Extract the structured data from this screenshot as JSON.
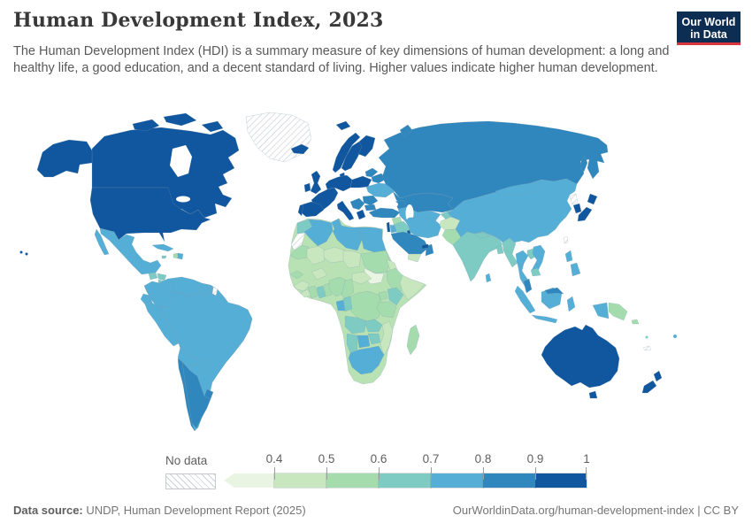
{
  "header": {
    "title": "Human Development Index, 2023",
    "subtitle": "The Human Development Index (HDI) is a summary measure of key dimensions of human development: a long and healthy life, a good education, and a decent standard of living. Higher values indicate higher human development.",
    "logo": {
      "line1": "Our World",
      "line2": "in Data",
      "bg_color": "#0d2e52",
      "accent_color": "#d8353f"
    }
  },
  "legend": {
    "no_data_label": "No data",
    "ticks": [
      "0.4",
      "0.5",
      "0.6",
      "0.7",
      "0.8",
      "0.9",
      "1"
    ],
    "bins": [
      {
        "label": "<0.4",
        "color": "#e9f4e2"
      },
      {
        "label": "0.4-0.5",
        "color": "#c8e7bf"
      },
      {
        "label": "0.5-0.6",
        "color": "#a5dcae"
      },
      {
        "label": "0.6-0.7",
        "color": "#7ecbc3"
      },
      {
        "label": "0.7-0.8",
        "color": "#55aed6"
      },
      {
        "label": "0.8-0.9",
        "color": "#2f87bd"
      },
      {
        "label": "0.9-1",
        "color": "#11579f"
      }
    ],
    "no_data_pattern": "diagonal-hatch"
  },
  "footer": {
    "source_label": "Data source:",
    "source_text": "UNDP, Human Development Report (2025)",
    "credit": "OurWorldinData.org/human-development-index | CC BY"
  },
  "chart_data": {
    "type": "choropleth",
    "title": "Human Development Index, 2023",
    "year": "2023",
    "unit_range": [
      0,
      1
    ],
    "legend_position": "bottom",
    "bins": [
      "<0.4",
      "0.4-0.5",
      "0.5-0.6",
      "0.6-0.7",
      "0.7-0.8",
      "0.8-0.9",
      "0.9-1",
      "No data"
    ],
    "regions": [
      {
        "name": "Canada",
        "bin": "0.9-1"
      },
      {
        "name": "United States",
        "bin": "0.9-1"
      },
      {
        "name": "Greenland",
        "bin": "No data"
      },
      {
        "name": "Mexico",
        "bin": "0.7-0.8"
      },
      {
        "name": "Guatemala",
        "bin": "0.6-0.7"
      },
      {
        "name": "Honduras",
        "bin": "0.6-0.7"
      },
      {
        "name": "Nicaragua",
        "bin": "0.6-0.7"
      },
      {
        "name": "Costa Rica",
        "bin": "0.8-0.9"
      },
      {
        "name": "Panama",
        "bin": "0.8-0.9"
      },
      {
        "name": "Cuba",
        "bin": "0.7-0.8"
      },
      {
        "name": "Jamaica",
        "bin": "0.6-0.7"
      },
      {
        "name": "Haiti",
        "bin": "0.5-0.6"
      },
      {
        "name": "Dominican Republic",
        "bin": "0.7-0.8"
      },
      {
        "name": "Colombia",
        "bin": "0.7-0.8"
      },
      {
        "name": "Venezuela",
        "bin": "0.7-0.8"
      },
      {
        "name": "Guyana",
        "bin": "0.7-0.8"
      },
      {
        "name": "Suriname",
        "bin": "0.7-0.8"
      },
      {
        "name": "French Guiana",
        "bin": "No data"
      },
      {
        "name": "Ecuador",
        "bin": "0.7-0.8"
      },
      {
        "name": "Peru",
        "bin": "0.7-0.8"
      },
      {
        "name": "Brazil",
        "bin": "0.7-0.8"
      },
      {
        "name": "Bolivia",
        "bin": "0.7-0.8"
      },
      {
        "name": "Paraguay",
        "bin": "0.7-0.8"
      },
      {
        "name": "Chile",
        "bin": "0.8-0.9"
      },
      {
        "name": "Argentina",
        "bin": "0.8-0.9"
      },
      {
        "name": "Uruguay",
        "bin": "0.8-0.9"
      },
      {
        "name": "Iceland",
        "bin": "0.9-1"
      },
      {
        "name": "Ireland",
        "bin": "0.9-1"
      },
      {
        "name": "United Kingdom",
        "bin": "0.9-1"
      },
      {
        "name": "Norway",
        "bin": "0.9-1"
      },
      {
        "name": "Sweden",
        "bin": "0.9-1"
      },
      {
        "name": "Finland",
        "bin": "0.9-1"
      },
      {
        "name": "Denmark",
        "bin": "0.9-1"
      },
      {
        "name": "France",
        "bin": "0.9-1"
      },
      {
        "name": "Germany",
        "bin": "0.9-1"
      },
      {
        "name": "Poland",
        "bin": "0.9-1"
      },
      {
        "name": "Spain",
        "bin": "0.9-1"
      },
      {
        "name": "Portugal",
        "bin": "0.9-1"
      },
      {
        "name": "Italy",
        "bin": "0.9-1"
      },
      {
        "name": "Greece",
        "bin": "0.9-1"
      },
      {
        "name": "Serbia",
        "bin": "0.8-0.9"
      },
      {
        "name": "Romania",
        "bin": "0.8-0.9"
      },
      {
        "name": "Bulgaria",
        "bin": "0.8-0.9"
      },
      {
        "name": "Baltic states",
        "bin": "0.8-0.9"
      },
      {
        "name": "Belarus",
        "bin": "0.8-0.9"
      },
      {
        "name": "Ukraine",
        "bin": "0.7-0.8"
      },
      {
        "name": "Russia",
        "bin": "0.8-0.9"
      },
      {
        "name": "Kazakhstan",
        "bin": "0.8-0.9"
      },
      {
        "name": "Uzbekistan",
        "bin": "0.7-0.8"
      },
      {
        "name": "Turkmenistan",
        "bin": "0.7-0.8"
      },
      {
        "name": "Tajikistan",
        "bin": "0.6-0.7"
      },
      {
        "name": "Azerbaijan",
        "bin": "0.8-0.9"
      },
      {
        "name": "Turkey",
        "bin": "0.8-0.9"
      },
      {
        "name": "Syria",
        "bin": "0.5-0.6"
      },
      {
        "name": "Iraq",
        "bin": "0.6-0.7"
      },
      {
        "name": "Israel",
        "bin": "0.9-1"
      },
      {
        "name": "Jordan",
        "bin": "0.7-0.8"
      },
      {
        "name": "Kuwait",
        "bin": "0.9-1"
      },
      {
        "name": "Saudi Arabia",
        "bin": "0.8-0.9"
      },
      {
        "name": "Yemen",
        "bin": "0.4-0.5"
      },
      {
        "name": "Oman",
        "bin": "0.8-0.9"
      },
      {
        "name": "United Arab Emirates",
        "bin": "0.9-1"
      },
      {
        "name": "Iran",
        "bin": "0.7-0.8"
      },
      {
        "name": "Afghanistan",
        "bin": "0.4-0.5"
      },
      {
        "name": "Pakistan",
        "bin": "0.5-0.6"
      },
      {
        "name": "India",
        "bin": "0.6-0.7"
      },
      {
        "name": "Nepal",
        "bin": "0.6-0.7"
      },
      {
        "name": "Bangladesh",
        "bin": "0.6-0.7"
      },
      {
        "name": "Sri Lanka",
        "bin": "0.7-0.8"
      },
      {
        "name": "Myanmar",
        "bin": "0.6-0.7"
      },
      {
        "name": "Thailand",
        "bin": "0.7-0.8"
      },
      {
        "name": "Laos",
        "bin": "0.6-0.7"
      },
      {
        "name": "Vietnam",
        "bin": "0.7-0.8"
      },
      {
        "name": "Cambodia",
        "bin": "0.6-0.7"
      },
      {
        "name": "Malaysia",
        "bin": "0.8-0.9"
      },
      {
        "name": "Indonesia",
        "bin": "0.7-0.8"
      },
      {
        "name": "Philippines",
        "bin": "0.7-0.8"
      },
      {
        "name": "China",
        "bin": "0.7-0.8"
      },
      {
        "name": "Mongolia",
        "bin": "0.7-0.8"
      },
      {
        "name": "North Korea",
        "bin": "No data"
      },
      {
        "name": "South Korea",
        "bin": "0.9-1"
      },
      {
        "name": "Japan",
        "bin": "0.9-1"
      },
      {
        "name": "Taiwan",
        "bin": "No data"
      },
      {
        "name": "Morocco",
        "bin": "0.6-0.7"
      },
      {
        "name": "Western Sahara",
        "bin": "No data"
      },
      {
        "name": "Algeria",
        "bin": "0.7-0.8"
      },
      {
        "name": "Tunisia",
        "bin": "0.7-0.8"
      },
      {
        "name": "Libya",
        "bin": "0.7-0.8"
      },
      {
        "name": "Egypt",
        "bin": "0.7-0.8"
      },
      {
        "name": "Mauritania",
        "bin": "0.5-0.6"
      },
      {
        "name": "Mali",
        "bin": "0.4-0.5"
      },
      {
        "name": "Niger",
        "bin": "0.4-0.5"
      },
      {
        "name": "Chad",
        "bin": "0.4-0.5"
      },
      {
        "name": "Sudan",
        "bin": "0.5-0.6"
      },
      {
        "name": "South Sudan",
        "bin": "<0.4"
      },
      {
        "name": "Eritrea",
        "bin": "0.4-0.5"
      },
      {
        "name": "Ethiopia",
        "bin": "0.5-0.6"
      },
      {
        "name": "Somalia",
        "bin": "0.4-0.5"
      },
      {
        "name": "Senegal",
        "bin": "0.5-0.6"
      },
      {
        "name": "Guinea",
        "bin": "0.4-0.5"
      },
      {
        "name": "Liberia",
        "bin": "0.4-0.5"
      },
      {
        "name": "Ivory Coast",
        "bin": "0.5-0.6"
      },
      {
        "name": "Ghana",
        "bin": "0.6-0.7"
      },
      {
        "name": "Benin",
        "bin": "0.5-0.6"
      },
      {
        "name": "Burkina Faso",
        "bin": "0.4-0.5"
      },
      {
        "name": "Nigeria",
        "bin": "0.5-0.6"
      },
      {
        "name": "Cameroon",
        "bin": "0.5-0.6"
      },
      {
        "name": "Central African Republic",
        "bin": "0.4-0.5"
      },
      {
        "name": "DR Congo",
        "bin": "0.5-0.6"
      },
      {
        "name": "Gabon",
        "bin": "0.7-0.8"
      },
      {
        "name": "Congo",
        "bin": "0.6-0.7"
      },
      {
        "name": "Uganda",
        "bin": "0.5-0.6"
      },
      {
        "name": "Kenya",
        "bin": "0.6-0.7"
      },
      {
        "name": "Tanzania",
        "bin": "0.5-0.6"
      },
      {
        "name": "Angola",
        "bin": "0.6-0.7"
      },
      {
        "name": "Zambia",
        "bin": "0.6-0.7"
      },
      {
        "name": "Mozambique",
        "bin": "0.4-0.5"
      },
      {
        "name": "Zimbabwe",
        "bin": "0.6-0.7"
      },
      {
        "name": "Botswana",
        "bin": "0.7-0.8"
      },
      {
        "name": "Namibia",
        "bin": "0.6-0.7"
      },
      {
        "name": "South Africa",
        "bin": "0.7-0.8"
      },
      {
        "name": "Madagascar",
        "bin": "0.5-0.6"
      },
      {
        "name": "Australia",
        "bin": "0.9-1"
      },
      {
        "name": "New Zealand",
        "bin": "0.9-1"
      },
      {
        "name": "Papua New Guinea",
        "bin": "0.5-0.6"
      },
      {
        "name": "Fiji",
        "bin": "0.7-0.8"
      },
      {
        "name": "Solomon Islands",
        "bin": "0.5-0.6"
      },
      {
        "name": "Vanuatu",
        "bin": "0.6-0.7"
      },
      {
        "name": "New Caledonia",
        "bin": "No data"
      }
    ]
  }
}
